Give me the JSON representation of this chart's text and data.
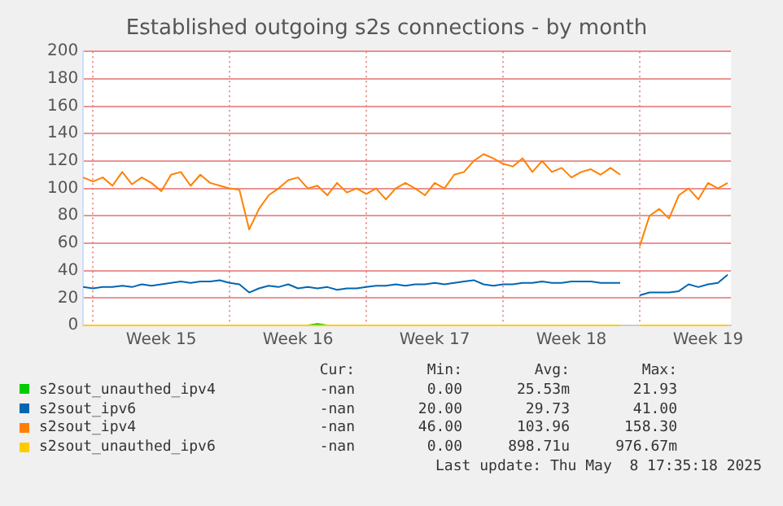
{
  "chart_data": {
    "type": "line",
    "title": "Established outgoing s2s connections - by month",
    "x": [
      "2025-04-06T12:00",
      "2025-04-07T00:00",
      "2025-04-07T12:00",
      "2025-04-08T00:00",
      "2025-04-08T12:00",
      "2025-04-09T00:00",
      "2025-04-09T12:00",
      "2025-04-10T00:00",
      "2025-04-10T12:00",
      "2025-04-11T00:00",
      "2025-04-11T12:00",
      "2025-04-12T00:00",
      "2025-04-12T12:00",
      "2025-04-13T00:00",
      "2025-04-13T12:00",
      "2025-04-14T00:00",
      "2025-04-14T12:00",
      "2025-04-15T00:00",
      "2025-04-15T12:00",
      "2025-04-16T00:00",
      "2025-04-16T12:00",
      "2025-04-17T00:00",
      "2025-04-17T12:00",
      "2025-04-18T00:00",
      "2025-04-18T12:00",
      "2025-04-19T00:00",
      "2025-04-19T12:00",
      "2025-04-20T00:00",
      "2025-04-20T12:00",
      "2025-04-21T00:00",
      "2025-04-21T12:00",
      "2025-04-22T00:00",
      "2025-04-22T12:00",
      "2025-04-23T00:00",
      "2025-04-23T12:00",
      "2025-04-24T00:00",
      "2025-04-24T12:00",
      "2025-04-25T00:00",
      "2025-04-25T12:00",
      "2025-04-26T00:00",
      "2025-04-26T12:00",
      "2025-04-27T00:00",
      "2025-04-27T12:00",
      "2025-04-28T00:00",
      "2025-04-28T12:00",
      "2025-04-29T00:00",
      "2025-04-29T12:00",
      "2025-04-30T00:00",
      "2025-04-30T12:00",
      "2025-05-01T00:00",
      "2025-05-01T12:00",
      "2025-05-02T00:00",
      "2025-05-02T12:00",
      "2025-05-03T00:00",
      "2025-05-03T12:00",
      "2025-05-04T00:00",
      "2025-05-04T12:00",
      "2025-05-05T00:00",
      "2025-05-05T12:00",
      "2025-05-06T00:00",
      "2025-05-06T12:00",
      "2025-05-07T00:00",
      "2025-05-07T12:00",
      "2025-05-08T00:00",
      "2025-05-08T12:00",
      "2025-05-09T00:00",
      "2025-05-09T12:00"
    ],
    "series": [
      {
        "name": "s2sout_unauthed_ipv4",
        "color": "#00cc00",
        "values": [
          null,
          null,
          null,
          null,
          null,
          null,
          null,
          null,
          null,
          null,
          null,
          null,
          null,
          null,
          null,
          null,
          null,
          null,
          null,
          null,
          null,
          null,
          null,
          0,
          1,
          0,
          null,
          null,
          null,
          null,
          null,
          null,
          null,
          null,
          null,
          null,
          null,
          null,
          null,
          null,
          null,
          null,
          null,
          null,
          null,
          null,
          null,
          null,
          null,
          null,
          null,
          null,
          null,
          null,
          null,
          null,
          null,
          null,
          null,
          null,
          null,
          null,
          null,
          null,
          null,
          null,
          null
        ]
      },
      {
        "name": "s2sout_ipv6",
        "color": "#0066b3",
        "values": [
          28,
          27,
          28,
          28,
          29,
          28,
          30,
          29,
          30,
          31,
          32,
          31,
          32,
          32,
          33,
          31,
          30,
          24,
          27,
          29,
          28,
          30,
          27,
          28,
          27,
          28,
          26,
          27,
          27,
          28,
          29,
          29,
          30,
          29,
          30,
          30,
          31,
          30,
          31,
          32,
          33,
          30,
          29,
          30,
          30,
          31,
          31,
          32,
          31,
          31,
          32,
          32,
          32,
          31,
          31,
          31,
          null,
          22,
          24,
          24,
          24,
          25,
          30,
          28,
          30,
          31,
          37
        ]
      },
      {
        "name": "s2sout_ipv4",
        "color": "#ff8000",
        "values": [
          108,
          105,
          108,
          102,
          112,
          103,
          108,
          104,
          98,
          110,
          112,
          102,
          110,
          104,
          102,
          100,
          99,
          70,
          85,
          95,
          100,
          106,
          108,
          100,
          102,
          95,
          104,
          97,
          100,
          96,
          100,
          92,
          100,
          104,
          100,
          95,
          104,
          100,
          110,
          112,
          120,
          125,
          122,
          118,
          116,
          122,
          112,
          120,
          112,
          115,
          108,
          112,
          114,
          110,
          115,
          110,
          null,
          58,
          80,
          85,
          78,
          95,
          100,
          92,
          104,
          100,
          104
        ]
      },
      {
        "name": "s2sout_unauthed_ipv6",
        "color": "#ffcc00",
        "values": [
          0,
          0,
          0,
          0,
          0,
          0,
          0,
          0,
          0,
          0,
          0,
          0,
          0,
          0,
          0,
          0,
          0,
          0,
          0,
          0,
          0,
          0,
          0,
          0,
          0,
          0,
          0,
          0,
          0,
          0,
          0,
          0,
          0,
          0,
          0,
          0,
          0,
          0,
          0,
          0,
          0,
          0,
          0,
          0,
          0,
          0,
          0,
          0,
          0,
          0,
          0,
          0,
          0,
          0,
          0,
          0,
          null,
          0,
          0,
          0,
          0,
          0,
          0,
          0,
          0,
          0,
          0
        ]
      }
    ],
    "xlim": [
      "2025-04-06T12:00",
      "2025-05-09T16:00"
    ],
    "xticks": [
      {
        "value": "2025-04-07T00:00",
        "label": null
      },
      {
        "value": "2025-04-10T12:00",
        "label": "Week 15"
      },
      {
        "value": "2025-04-14T00:00",
        "label": null
      },
      {
        "value": "2025-04-17T12:00",
        "label": "Week 16"
      },
      {
        "value": "2025-04-21T00:00",
        "label": null
      },
      {
        "value": "2025-04-24T12:00",
        "label": "Week 17"
      },
      {
        "value": "2025-04-28T00:00",
        "label": null
      },
      {
        "value": "2025-05-01T12:00",
        "label": "Week 18"
      },
      {
        "value": "2025-05-05T00:00",
        "label": null
      },
      {
        "value": "2025-05-08T12:00",
        "label": "Week 19"
      }
    ],
    "ylim": [
      0,
      200
    ],
    "yticks": [
      0,
      20,
      40,
      60,
      80,
      100,
      120,
      140,
      160,
      180,
      200
    ],
    "grid": true,
    "legend": "bottom",
    "annotations": [
      "Cur:",
      "Min:",
      "Avg:",
      "Max:",
      "-nan",
      "0.00",
      "25.53m",
      "21.93",
      "-nan",
      "20.00",
      "29.73",
      "41.00",
      "-nan",
      "46.00",
      "103.96",
      "158.30",
      "-nan",
      "0.00",
      "898.71u",
      "976.67m",
      "Last update: Thu May  8 17:35:18 2025"
    ]
  }
}
